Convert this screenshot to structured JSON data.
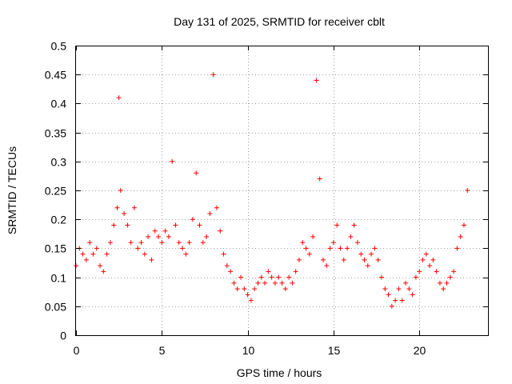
{
  "chart_data": {
    "type": "scatter",
    "title": "Day 131 of 2025, SRMTID for receiver cblt",
    "xlabel": "GPS time / hours",
    "ylabel": "SRMTID / TECUs",
    "xlim": [
      0,
      24
    ],
    "ylim": [
      0,
      0.5
    ],
    "x_ticks": [
      0,
      5,
      10,
      15,
      20
    ],
    "x_tick_labels": [
      "0",
      "5",
      "10",
      "15",
      "20"
    ],
    "y_ticks": [
      0,
      0.05,
      0.1,
      0.15,
      0.2,
      0.25,
      0.3,
      0.35,
      0.4,
      0.45,
      0.5
    ],
    "y_tick_labels": [
      "0",
      "0.05",
      "0.1",
      "0.15",
      "0.2",
      "0.25",
      "0.3",
      "0.35",
      "0.4",
      "0.45",
      "0.5"
    ],
    "grid": true,
    "marker": "+",
    "color": "#ff0000",
    "series": [
      {
        "name": "SRMTID",
        "x": [
          0.0,
          0.2,
          0.4,
          0.6,
          0.8,
          1.0,
          1.2,
          1.4,
          1.6,
          1.8,
          2.0,
          2.2,
          2.4,
          2.5,
          2.6,
          2.8,
          3.0,
          3.2,
          3.4,
          3.6,
          3.8,
          4.0,
          4.2,
          4.4,
          4.6,
          4.8,
          5.0,
          5.2,
          5.4,
          5.6,
          5.8,
          6.0,
          6.2,
          6.4,
          6.6,
          6.8,
          7.0,
          7.2,
          7.4,
          7.6,
          7.8,
          8.0,
          8.2,
          8.4,
          8.6,
          8.8,
          9.0,
          9.2,
          9.4,
          9.6,
          9.8,
          10.0,
          10.2,
          10.4,
          10.6,
          10.8,
          11.0,
          11.2,
          11.4,
          11.6,
          11.8,
          12.0,
          12.2,
          12.4,
          12.6,
          12.8,
          13.0,
          13.2,
          13.4,
          13.6,
          13.8,
          14.0,
          14.2,
          14.4,
          14.6,
          14.8,
          15.0,
          15.2,
          15.4,
          15.6,
          15.8,
          16.0,
          16.2,
          16.4,
          16.6,
          16.8,
          17.0,
          17.2,
          17.4,
          17.6,
          17.8,
          18.0,
          18.2,
          18.4,
          18.6,
          18.8,
          19.0,
          19.2,
          19.4,
          19.6,
          19.8,
          20.0,
          20.2,
          20.4,
          20.6,
          20.8,
          21.0,
          21.2,
          21.4,
          21.6,
          21.8,
          22.0,
          22.2,
          22.4,
          22.6,
          22.8
        ],
        "y": [
          0.12,
          0.15,
          0.14,
          0.13,
          0.16,
          0.14,
          0.15,
          0.12,
          0.11,
          0.14,
          0.16,
          0.19,
          0.22,
          0.41,
          0.25,
          0.21,
          0.19,
          0.16,
          0.22,
          0.15,
          0.16,
          0.14,
          0.17,
          0.13,
          0.18,
          0.17,
          0.16,
          0.18,
          0.17,
          0.3,
          0.19,
          0.16,
          0.15,
          0.14,
          0.16,
          0.2,
          0.28,
          0.19,
          0.16,
          0.17,
          0.21,
          0.45,
          0.22,
          0.18,
          0.14,
          0.12,
          0.11,
          0.09,
          0.08,
          0.1,
          0.08,
          0.07,
          0.06,
          0.08,
          0.09,
          0.1,
          0.09,
          0.11,
          0.1,
          0.09,
          0.1,
          0.09,
          0.08,
          0.1,
          0.09,
          0.11,
          0.13,
          0.16,
          0.15,
          0.14,
          0.17,
          0.44,
          0.27,
          0.13,
          0.12,
          0.15,
          0.16,
          0.19,
          0.15,
          0.13,
          0.15,
          0.17,
          0.19,
          0.16,
          0.14,
          0.13,
          0.12,
          0.14,
          0.15,
          0.13,
          0.1,
          0.08,
          0.07,
          0.05,
          0.06,
          0.08,
          0.06,
          0.09,
          0.08,
          0.07,
          0.1,
          0.11,
          0.13,
          0.14,
          0.12,
          0.13,
          0.11,
          0.09,
          0.08,
          0.09,
          0.1,
          0.11,
          0.15,
          0.17,
          0.19,
          0.25
        ]
      }
    ]
  }
}
